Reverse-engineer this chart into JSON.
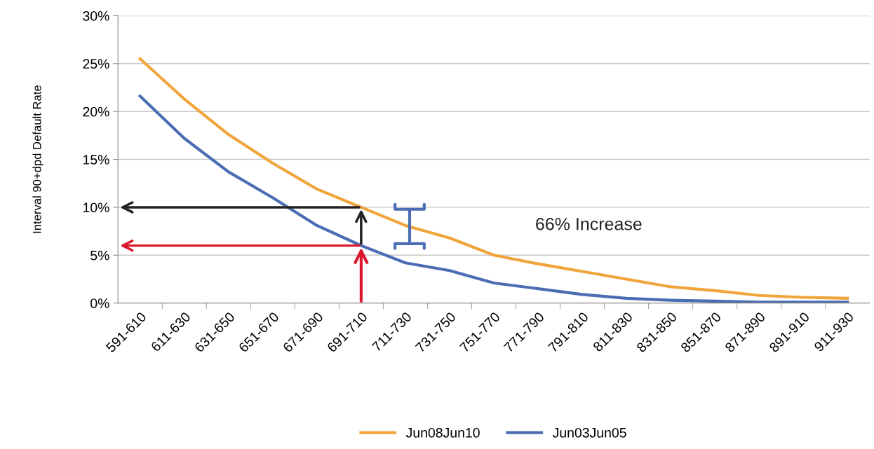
{
  "chart_data": {
    "type": "line",
    "ylabel": "Interval 90+dpd Default Rate",
    "categories": [
      "591-610",
      "611-630",
      "631-650",
      "651-670",
      "671-690",
      "691-710",
      "711-730",
      "731-750",
      "751-770",
      "771-790",
      "791-810",
      "811-830",
      "831-850",
      "851-870",
      "871-890",
      "891-910",
      "911-930"
    ],
    "series": [
      {
        "name": "Jun08Jun10",
        "color": "#f0a53c",
        "values": [
          25.5,
          21.3,
          17.6,
          14.6,
          11.9,
          10.0,
          8.1,
          6.8,
          5.0,
          4.1,
          3.3,
          2.5,
          1.7,
          1.3,
          0.8,
          0.6,
          0.5
        ]
      },
      {
        "name": "Jun03Jun05",
        "color": "#4a6db3",
        "values": [
          21.6,
          17.2,
          13.7,
          11.0,
          8.1,
          6.0,
          4.2,
          3.4,
          2.1,
          1.5,
          0.9,
          0.5,
          0.3,
          0.2,
          0.1,
          0.1,
          0.1
        ]
      }
    ],
    "ylim": [
      0,
      30
    ],
    "yticks": [
      {
        "value": 0,
        "label": "0%"
      },
      {
        "value": 5,
        "label": "5%"
      },
      {
        "value": 10,
        "label": "10%"
      },
      {
        "value": 15,
        "label": "15%"
      },
      {
        "value": 20,
        "label": "20%"
      },
      {
        "value": 25,
        "label": "25%"
      },
      {
        "value": 30,
        "label": "30%"
      }
    ],
    "grid": "y",
    "legend": "bottom",
    "marker": "none",
    "line_style": "solid",
    "annotations": [
      "66% Increase"
    ]
  }
}
